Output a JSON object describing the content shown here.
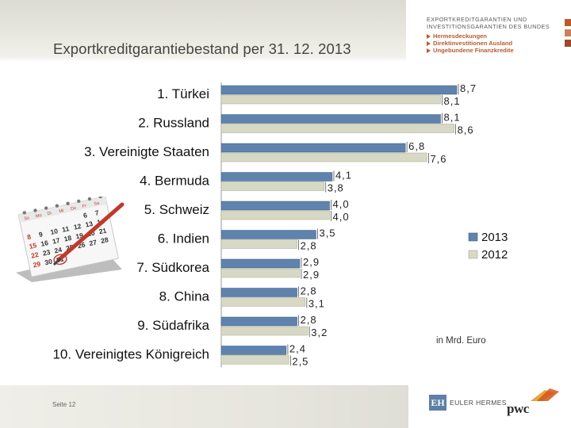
{
  "header": {
    "title": "Exportkreditgarantiebestand per 31. 12. 2013",
    "brand_line1": "EXPORTKREDITGARANTIEN UND",
    "brand_line2": "INVESTITIONSGARANTIEN DES BUNDES",
    "brand_items": [
      "Hermesdeckungen",
      "Direktinvestitionen Ausland",
      "Ungebundene Finanzkredite"
    ]
  },
  "colors": {
    "series_2013": "#5f83ac",
    "series_2012": "#d8d9c4",
    "brand_accent": "#b85a2e",
    "side_squares": [
      "#b85a2e",
      "#c8825a",
      "#9a4a28"
    ]
  },
  "chart_data": {
    "type": "bar",
    "orientation": "horizontal",
    "categories": [
      "1. Türkei",
      "2. Russland",
      "3. Vereinigte Staaten",
      "4. Bermuda",
      "5. Schweiz",
      "6. Indien",
      "7. Südkorea",
      "8. China",
      "9. Südafrika",
      "10. Vereinigtes Königreich"
    ],
    "series": [
      {
        "name": "2013",
        "values": [
          8.7,
          8.1,
          6.8,
          4.1,
          4.0,
          3.5,
          2.9,
          2.8,
          2.8,
          2.4
        ],
        "labels": [
          "8,7",
          "8,1",
          "6,8",
          "4,1",
          "4,0",
          "3,5",
          "2,9",
          "2,8",
          "2,8",
          "2,4"
        ],
        "color": "#5f83ac"
      },
      {
        "name": "2012",
        "values": [
          8.1,
          8.6,
          7.6,
          3.8,
          4.0,
          2.8,
          2.9,
          3.1,
          3.2,
          2.5
        ],
        "labels": [
          "8,1",
          "8,6",
          "7,6",
          "3,8",
          "4,0",
          "2,8",
          "2,9",
          "3,1",
          "3,2",
          "2,5"
        ],
        "color": "#d8d9c4"
      }
    ],
    "xlim": [
      0,
      8.7
    ],
    "grid": false,
    "legend_position": "right",
    "unit_note": "in Mrd. Euro"
  },
  "footer": {
    "page_label": "Seite 12",
    "euler_hermes": "EULER HERMES",
    "euler_mark": "EH",
    "pwc": "pwc"
  },
  "calendar": {
    "header_days": [
      "So",
      "Mo",
      "Di",
      "Mi",
      "Do",
      "Fr",
      "Sa"
    ],
    "rows": [
      [
        "",
        "",
        "",
        "",
        "",
        "6",
        "7"
      ],
      [
        "8",
        "9",
        "10",
        "11",
        "12",
        "13",
        "14"
      ],
      [
        "15",
        "16",
        "17",
        "18",
        "19",
        "20",
        "21"
      ],
      [
        "22",
        "23",
        "24",
        "25",
        "26",
        "27",
        "28"
      ],
      [
        "29",
        "30",
        "31",
        "",
        "",
        "",
        ""
      ]
    ],
    "highlight": "31",
    "accent_color": "#c0392b"
  }
}
